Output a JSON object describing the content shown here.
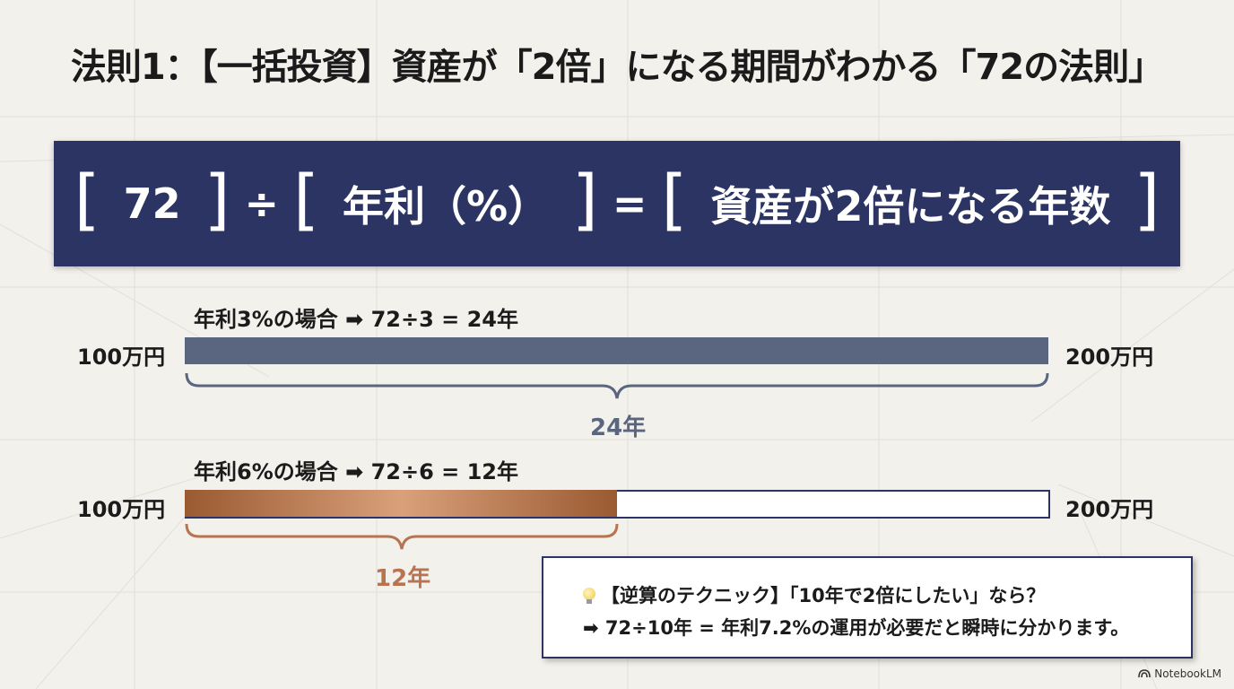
{
  "title": "法則1：【一括投資】資産が「2倍」になる期間がわかる「72の法則」",
  "formula": {
    "bracket_open": "[",
    "bracket_close": "]",
    "term1": "72",
    "divide": "÷",
    "term2": "年利（%）",
    "equals": "=",
    "term3": "資産が2倍になる年数"
  },
  "case1": {
    "label": "年利3%の場合 ➡ 72÷3 = 24年",
    "start": "100万円",
    "end": "200万円",
    "years": "24年",
    "years_value": 24,
    "bar_color": "#5a6580",
    "label_color": "#5a6580"
  },
  "case2": {
    "label": "年利6%の場合 ➡ 72÷6 = 12年",
    "start": "100万円",
    "end": "200万円",
    "years": "12年",
    "years_value": 12,
    "bar_color": "#b87350",
    "label_color": "#b87350"
  },
  "tip": {
    "icon": "lightbulb-icon",
    "line1": "【逆算のテクニック】「10年で2倍にしたい」なら？",
    "line2": "➡ 72÷10年 = 年利7.2%の運用が必要だと瞬時に分かります。"
  },
  "brand": {
    "icon": "notebooklm-icon",
    "label": "NotebookLM"
  },
  "colors": {
    "navy": "#2b3463",
    "background": "#f3f1ec",
    "slate": "#5a6580",
    "copper": "#b87350"
  }
}
